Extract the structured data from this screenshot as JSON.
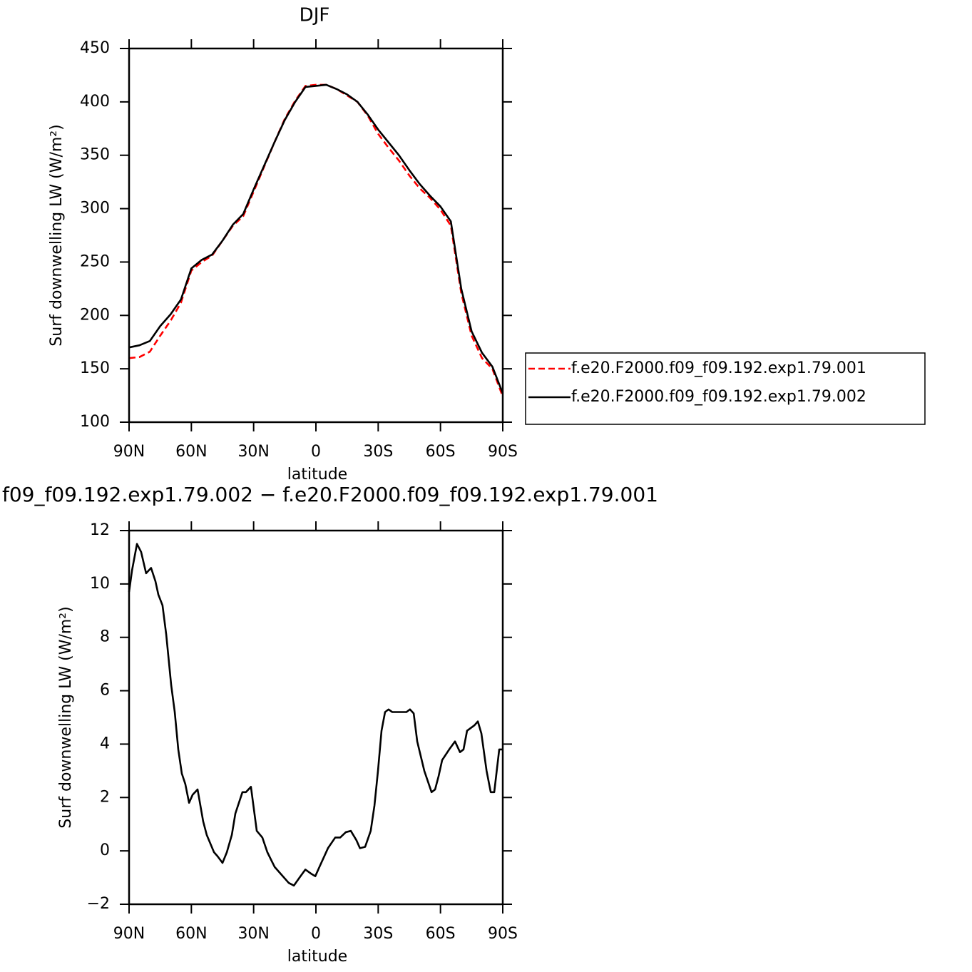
{
  "chart_data": [
    {
      "type": "line",
      "title": "DJF",
      "xlabel": "latitude",
      "ylabel": "Surf downwelling LW (W/m²)",
      "x": [
        90,
        85,
        80,
        75,
        70,
        65,
        60,
        55,
        50,
        45,
        40,
        35,
        30,
        25,
        20,
        15,
        10,
        5,
        0,
        -5,
        -10,
        -15,
        -20,
        -25,
        -30,
        -35,
        -40,
        -45,
        -50,
        -55,
        -60,
        -65,
        -70,
        -75,
        -80,
        -85,
        -90
      ],
      "series": [
        {
          "name": "f.e20.F2000.f09_f09.192.exp1.79.001",
          "color": "#ff0000",
          "linestyle": "dashed",
          "values": [
            160,
            161,
            166,
            181,
            195,
            212,
            242,
            250,
            256,
            270,
            284,
            293,
            316,
            339,
            362,
            384,
            401,
            415,
            416,
            416,
            412,
            406,
            400,
            387,
            370,
            357,
            345,
            331,
            319,
            310,
            299,
            284,
            221,
            181,
            160,
            150,
            124
          ]
        },
        {
          "name": "f.e20.F2000.f09_f09.192.exp1.79.002",
          "color": "#000000",
          "linestyle": "solid",
          "values": [
            170,
            172,
            176,
            190,
            201,
            215,
            244,
            252,
            257,
            270,
            285,
            295,
            318,
            340,
            362,
            383,
            400,
            414,
            415,
            416,
            412,
            407,
            400,
            388,
            374,
            362,
            350,
            336,
            323,
            312,
            302,
            288,
            225,
            185,
            165,
            152,
            127
          ]
        }
      ],
      "xlim": [
        90,
        -90
      ],
      "xticks": [
        {
          "value": 90,
          "label": "90N"
        },
        {
          "value": 60,
          "label": "60N"
        },
        {
          "value": 30,
          "label": "30N"
        },
        0,
        {
          "value": -30,
          "label": "30S"
        },
        {
          "value": -60,
          "label": "60S"
        },
        {
          "value": -90,
          "label": "90S"
        }
      ],
      "ylim": [
        100,
        450
      ],
      "yticks": [
        100,
        150,
        200,
        250,
        300,
        350,
        400,
        450
      ],
      "legend": "right"
    },
    {
      "type": "line",
      "title": "f09_f09.192.exp1.79.002 − f.e20.F2000.f09_f09.192.exp1.79.001",
      "xlabel": "latitude",
      "ylabel": "Surf downwelling LW (W/m²)",
      "x": [
        90,
        88.6,
        86.2,
        84.2,
        81.8,
        79.4,
        77.3,
        75.9,
        73.9,
        72.1,
        69.7,
        68,
        66.3,
        64.6,
        62.9,
        61.1,
        59.4,
        57,
        54.3,
        52.6,
        49.1,
        47.4,
        45,
        42.9,
        40.5,
        38.8,
        35.4,
        33.7,
        31.3,
        28.5,
        25.8,
        23.4,
        19.9,
        16.5,
        13.1,
        10.6,
        7.9,
        5.1,
        2.4,
        0.3,
        -1.7,
        -5.8,
        -9.3,
        -11.7,
        -14.4,
        -16.8,
        -19.5,
        -21.2,
        -23.7,
        -26.4,
        -28.2,
        -29.9,
        -31.6,
        -33.3,
        -35,
        -36.8,
        -38.8,
        -43.6,
        -45.3,
        -47.1,
        -48.8,
        -52.2,
        -55.7,
        -57.4,
        -59.1,
        -60.8,
        -64.2,
        -67,
        -69.4,
        -71.1,
        -72.8,
        -76.3,
        -78,
        -79.7,
        -82.2,
        -84.2,
        -85.9,
        -88.3,
        -90
      ],
      "series": [
        {
          "color": "#000000",
          "linestyle": "solid",
          "values": [
            9.7,
            10.5,
            11.5,
            11.2,
            10.4,
            10.6,
            10.1,
            9.6,
            9.2,
            8.1,
            6.2,
            5.2,
            3.8,
            2.9,
            2.5,
            1.8,
            2.1,
            2.3,
            1.1,
            0.6,
            -0.05,
            -0.2,
            -0.45,
            -0.05,
            0.6,
            1.4,
            2.2,
            2.2,
            2.4,
            0.75,
            0.5,
            -0.05,
            -0.6,
            -0.9,
            -1.2,
            -1.3,
            -1.0,
            -0.7,
            -0.85,
            -0.95,
            -0.6,
            0.1,
            0.5,
            0.5,
            0.7,
            0.75,
            0.4,
            0.1,
            0.15,
            0.75,
            1.7,
            3,
            4.5,
            5.2,
            5.3,
            5.2,
            5.2,
            5.2,
            5.3,
            5.15,
            4.1,
            3,
            2.2,
            2.3,
            2.8,
            3.4,
            3.8,
            4.1,
            3.7,
            3.8,
            4.5,
            4.7,
            4.85,
            4.4,
            3,
            2.2,
            2.2,
            3.8,
            3.8
          ]
        }
      ],
      "xlim": [
        90,
        -90
      ],
      "xticks": [
        {
          "value": 90,
          "label": "90N"
        },
        {
          "value": 60,
          "label": "60N"
        },
        {
          "value": 30,
          "label": "30N"
        },
        0,
        {
          "value": -30,
          "label": "30S"
        },
        {
          "value": -60,
          "label": "60S"
        },
        {
          "value": -90,
          "label": "90S"
        }
      ],
      "ylim": [
        -2,
        12
      ],
      "yticks": [
        {
          "value": -2,
          "label": "−2"
        },
        0,
        2,
        4,
        6,
        8,
        10,
        12
      ]
    }
  ]
}
